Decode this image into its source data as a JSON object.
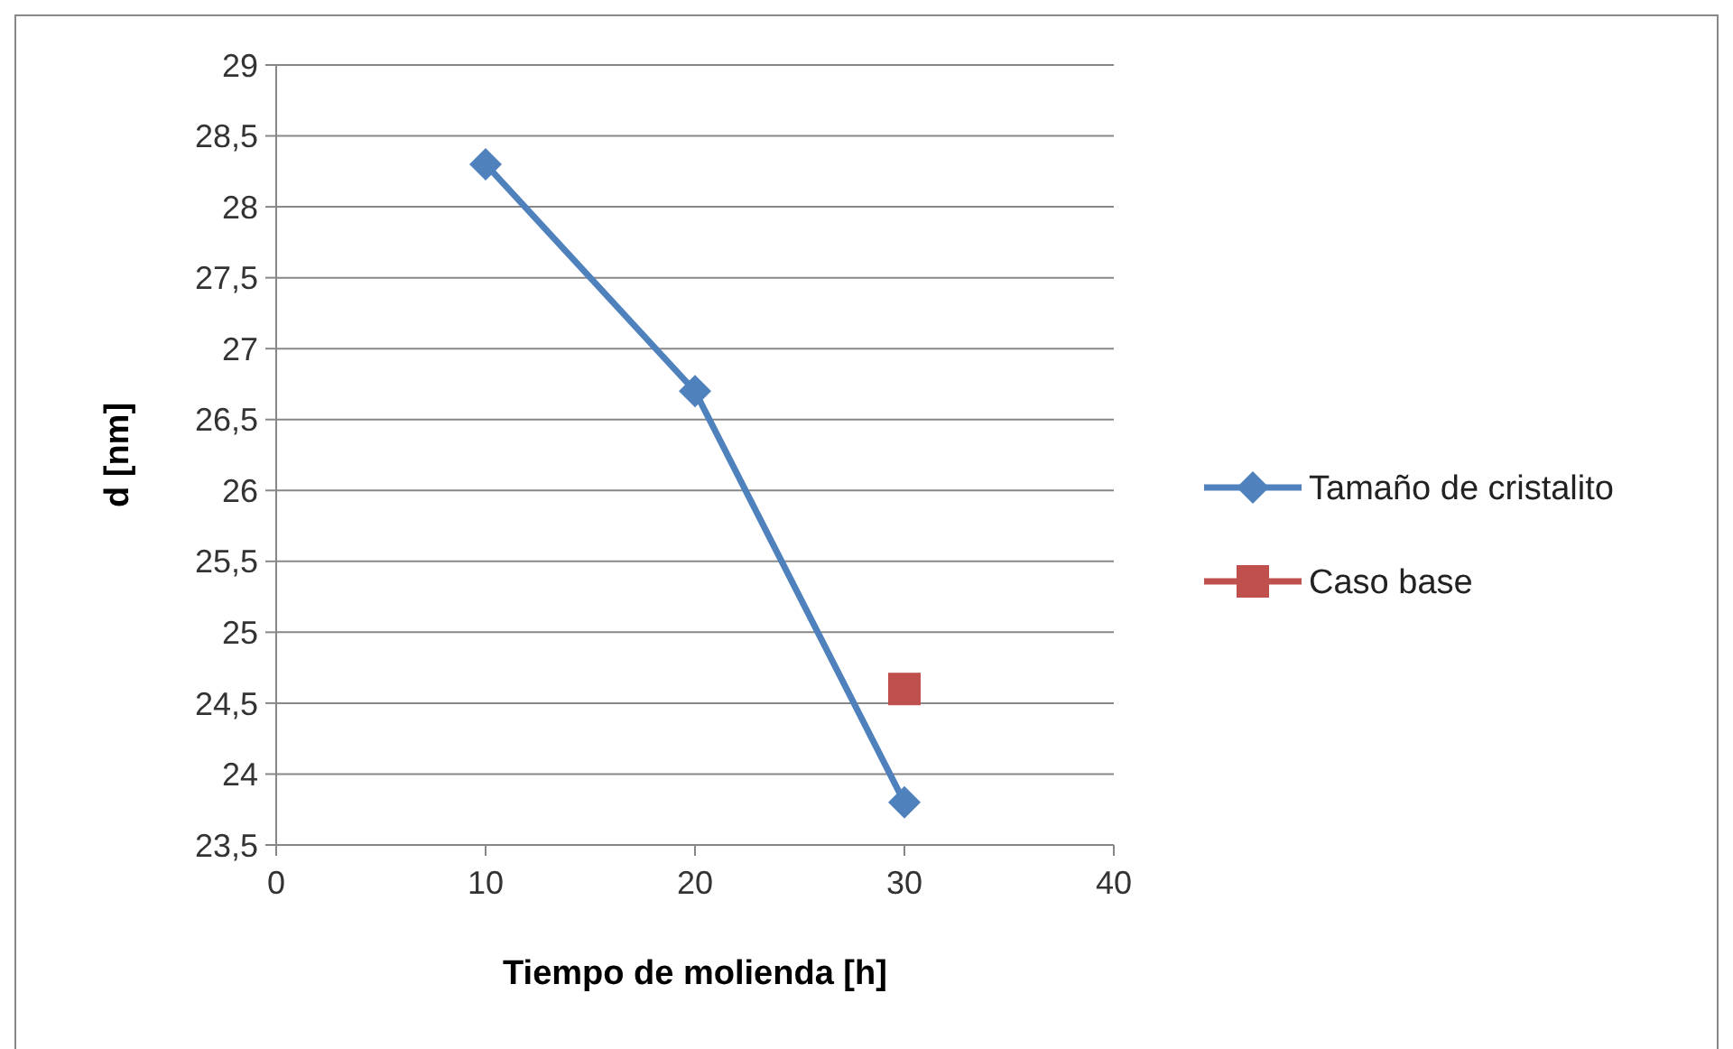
{
  "chart_data": {
    "type": "line",
    "xlabel": "Tiempo de molienda [h]",
    "ylabel": "d [nm]",
    "xlim": [
      0,
      40
    ],
    "xticks": [
      0,
      10,
      20,
      30,
      40
    ],
    "ylim": [
      23.5,
      29
    ],
    "yticks": [
      {
        "value": 23.5,
        "label": "23,5"
      },
      {
        "value": 24,
        "label": "24"
      },
      {
        "value": 24.5,
        "label": "24,5"
      },
      {
        "value": 25,
        "label": "25"
      },
      {
        "value": 25.5,
        "label": "25,5"
      },
      {
        "value": 26,
        "label": "26"
      },
      {
        "value": 26.5,
        "label": "26,5"
      },
      {
        "value": 27,
        "label": "27"
      },
      {
        "value": 27.5,
        "label": "27,5"
      },
      {
        "value": 28,
        "label": "28"
      },
      {
        "value": 28.5,
        "label": "28,5"
      },
      {
        "value": 29,
        "label": "29"
      }
    ],
    "grid": "y",
    "legend": "right",
    "series": [
      {
        "name": "Tamaño de cristalito",
        "color": "#4f81bd",
        "x": [
          10,
          20,
          30
        ],
        "values": [
          28.3,
          26.7,
          23.8
        ],
        "marker": "diamond"
      },
      {
        "name": "Caso base",
        "color": "#c0504d",
        "x": [
          30
        ],
        "values": [
          24.6
        ],
        "marker": "square"
      }
    ]
  }
}
